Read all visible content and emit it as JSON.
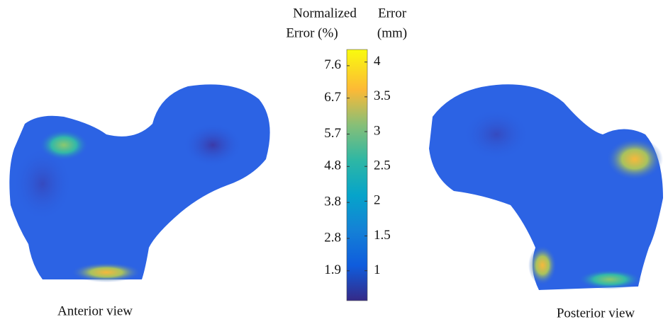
{
  "colorbar": {
    "left_title": [
      "Normalized",
      "Error (%)"
    ],
    "right_title": [
      "Error",
      "(mm)"
    ],
    "left_lim": [
      1.07,
      8.05
    ],
    "left_ticks": [
      7.6,
      6.7,
      5.7,
      4.8,
      3.8,
      2.8,
      1.9
    ],
    "right_lim": [
      0.57,
      4.18
    ],
    "right_ticks": [
      4,
      3.5,
      3,
      2.5,
      2,
      1.5,
      1
    ]
  },
  "views": [
    "Anterior view",
    "Posterior view"
  ]
}
